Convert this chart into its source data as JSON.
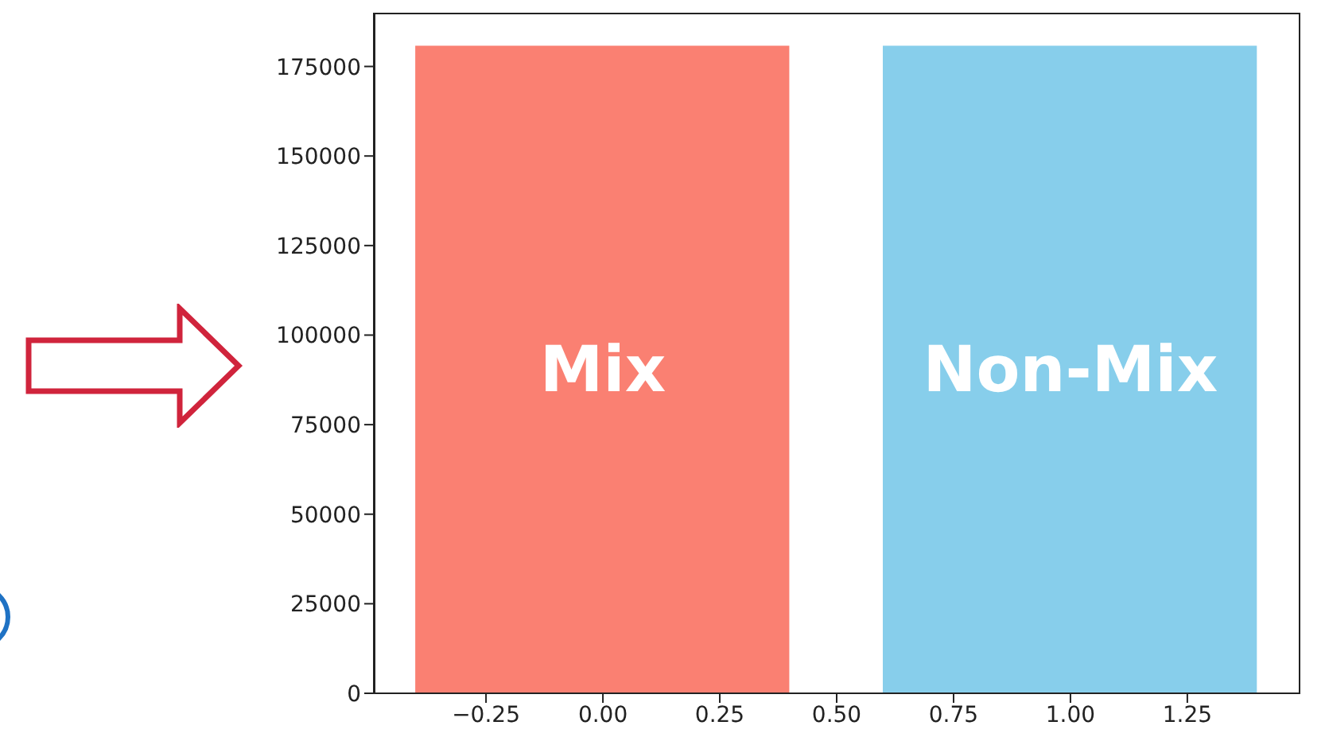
{
  "chart_data": {
    "type": "bar",
    "x": [
      0,
      1
    ],
    "values": [
      180800,
      180800
    ],
    "colors": [
      "#fa8072",
      "#87ceeb"
    ],
    "xlim": [
      -0.49,
      1.49
    ],
    "xticks": [
      {
        "value": -0.25,
        "label": "−0.25"
      },
      {
        "value": 0,
        "label": "0.00"
      },
      {
        "value": 0.25,
        "label": "0.25"
      },
      {
        "value": 0.5,
        "label": "0.50"
      },
      {
        "value": 0.75,
        "label": "0.75"
      },
      {
        "value": 1,
        "label": "1.00"
      },
      {
        "value": 1.25,
        "label": "1.25"
      }
    ],
    "ylim": [
      0,
      190000
    ],
    "yticks": [
      0,
      25000,
      50000,
      75000,
      100000,
      125000,
      150000,
      175000
    ],
    "annotations": [
      "Mix",
      "Non-Mix"
    ]
  }
}
